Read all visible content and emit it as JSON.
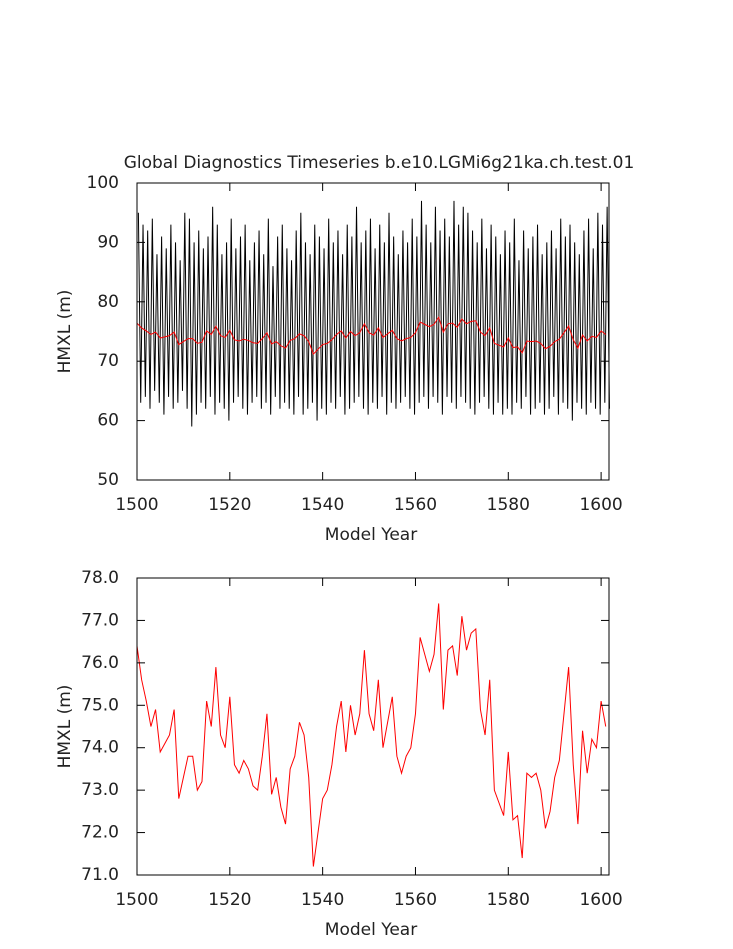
{
  "chart_data": [
    {
      "type": "line",
      "title": "Global Diagnostics Timeseries b.e10.LGMi6g21ka.ch.test.01",
      "x_label": "Model Year",
      "y_label": "HMXL (m)",
      "xlim": [
        1500,
        1601.7
      ],
      "ylim": [
        50,
        100
      ],
      "xticks": [
        1500,
        1520,
        1540,
        1560,
        1580,
        1600
      ],
      "yticks": [
        50,
        60,
        70,
        80,
        90,
        100
      ],
      "series": [
        {
          "color": "#000000",
          "x": [
            1500.3,
            1500.8,
            1501.3,
            1501.8,
            1502.3,
            1502.8,
            1503.3,
            1503.8,
            1504.3,
            1504.8,
            1505.3,
            1505.8,
            1506.3,
            1506.8,
            1507.3,
            1507.8,
            1508.3,
            1508.8,
            1509.3,
            1509.8,
            1510.3,
            1510.8,
            1511.3,
            1511.8,
            1512.3,
            1512.8,
            1513.3,
            1513.8,
            1514.3,
            1514.8,
            1515.3,
            1515.8,
            1516.3,
            1516.8,
            1517.3,
            1517.8,
            1518.3,
            1518.8,
            1519.3,
            1519.8,
            1520.3,
            1520.8,
            1521.3,
            1521.8,
            1522.3,
            1522.8,
            1523.3,
            1523.8,
            1524.3,
            1524.8,
            1525.3,
            1525.8,
            1526.3,
            1526.8,
            1527.3,
            1527.8,
            1528.3,
            1528.8,
            1529.3,
            1529.8,
            1530.3,
            1530.8,
            1531.3,
            1531.8,
            1532.3,
            1532.8,
            1533.3,
            1533.8,
            1534.3,
            1534.8,
            1535.3,
            1535.8,
            1536.3,
            1536.8,
            1537.3,
            1537.8,
            1538.3,
            1538.8,
            1539.3,
            1539.8,
            1540.3,
            1540.8,
            1541.3,
            1541.8,
            1542.3,
            1542.8,
            1543.3,
            1543.8,
            1544.3,
            1544.8,
            1545.3,
            1545.8,
            1546.3,
            1546.8,
            1547.3,
            1547.8,
            1548.3,
            1548.8,
            1549.3,
            1549.8,
            1550.3,
            1550.8,
            1551.3,
            1551.8,
            1552.3,
            1552.8,
            1553.3,
            1553.8,
            1554.3,
            1554.8,
            1555.3,
            1555.8,
            1556.3,
            1556.8,
            1557.3,
            1557.8,
            1558.3,
            1558.8,
            1559.3,
            1559.8,
            1560.3,
            1560.8,
            1561.3,
            1561.8,
            1562.3,
            1562.8,
            1563.3,
            1563.8,
            1564.3,
            1564.8,
            1565.3,
            1565.8,
            1566.3,
            1566.8,
            1567.3,
            1567.8,
            1568.3,
            1568.8,
            1569.3,
            1569.8,
            1570.3,
            1570.8,
            1571.3,
            1571.8,
            1572.3,
            1572.8,
            1573.3,
            1573.8,
            1574.3,
            1574.8,
            1575.3,
            1575.8,
            1576.3,
            1576.8,
            1577.3,
            1577.8,
            1578.3,
            1578.8,
            1579.3,
            1579.8,
            1580.3,
            1580.8,
            1581.3,
            1581.8,
            1582.3,
            1582.8,
            1583.3,
            1583.8,
            1584.3,
            1584.8,
            1585.3,
            1585.8,
            1586.3,
            1586.8,
            1587.3,
            1587.8,
            1588.3,
            1588.8,
            1589.3,
            1589.8,
            1590.3,
            1590.8,
            1591.3,
            1591.8,
            1592.3,
            1592.8,
            1593.3,
            1593.8,
            1594.3,
            1594.8,
            1595.3,
            1595.8,
            1596.3,
            1596.8,
            1597.3,
            1597.8,
            1598.3,
            1598.8,
            1599.3,
            1599.8,
            1600.3,
            1600.8,
            1601.3,
            1601.8
          ],
          "values": [
            95,
            63,
            93,
            64,
            92,
            62,
            94,
            65,
            88,
            63,
            91,
            61,
            89,
            64,
            93,
            62,
            90,
            63,
            87,
            65,
            95,
            62,
            94,
            59,
            90,
            61,
            92,
            63,
            89,
            62,
            91,
            64,
            96,
            61,
            93,
            63,
            88,
            62,
            90,
            60,
            94,
            63,
            89,
            64,
            91,
            62,
            93,
            61,
            87,
            63,
            90,
            64,
            92,
            62,
            88,
            63,
            94,
            61,
            86,
            64,
            91,
            62,
            93,
            63,
            89,
            62,
            87,
            61,
            92,
            64,
            95,
            61,
            90,
            62,
            88,
            63,
            93,
            60,
            91,
            62,
            89,
            61,
            94,
            63,
            90,
            62,
            92,
            64,
            88,
            61,
            93,
            62,
            91,
            63,
            96,
            64,
            90,
            62,
            92,
            61,
            94,
            63,
            89,
            62,
            93,
            64,
            90,
            61,
            95,
            63,
            91,
            62,
            88,
            63,
            92,
            64,
            90,
            62,
            94,
            61,
            91,
            63,
            97,
            64,
            93,
            62,
            90,
            64,
            96,
            63,
            92,
            61,
            94,
            64,
            91,
            63,
            97,
            62,
            93,
            64,
            96,
            63,
            95,
            62,
            92,
            61,
            90,
            63,
            94,
            64,
            89,
            62,
            93,
            61,
            91,
            63,
            88,
            61,
            92,
            62,
            90,
            61,
            94,
            63,
            87,
            62,
            92,
            64,
            89,
            61,
            91,
            62,
            93,
            63,
            88,
            61,
            90,
            62,
            92,
            64,
            89,
            61,
            94,
            63,
            91,
            62,
            93,
            60,
            90,
            63,
            88,
            62,
            92,
            61,
            94,
            63,
            89,
            62,
            95,
            61,
            93,
            63,
            96,
            62
          ]
        },
        {
          "color": "#ff0000",
          "x": [
            1500,
            1501,
            1502,
            1503,
            1504,
            1505,
            1506,
            1507,
            1508,
            1509,
            1510,
            1511,
            1512,
            1513,
            1514,
            1515,
            1516,
            1517,
            1518,
            1519,
            1520,
            1521,
            1522,
            1523,
            1524,
            1525,
            1526,
            1527,
            1528,
            1529,
            1530,
            1531,
            1532,
            1533,
            1534,
            1535,
            1536,
            1537,
            1538,
            1539,
            1540,
            1541,
            1542,
            1543,
            1544,
            1545,
            1546,
            1547,
            1548,
            1549,
            1550,
            1551,
            1552,
            1553,
            1554,
            1555,
            1556,
            1557,
            1558,
            1559,
            1560,
            1561,
            1562,
            1563,
            1564,
            1565,
            1566,
            1567,
            1568,
            1569,
            1570,
            1571,
            1572,
            1573,
            1574,
            1575,
            1576,
            1577,
            1578,
            1579,
            1580,
            1581,
            1582,
            1583,
            1584,
            1585,
            1586,
            1587,
            1588,
            1589,
            1590,
            1591,
            1592,
            1593,
            1594,
            1595,
            1596,
            1597,
            1598,
            1599,
            1600,
            1601
          ],
          "values": [
            76.4,
            75.6,
            75.1,
            74.5,
            74.9,
            73.9,
            74.1,
            74.3,
            74.9,
            72.8,
            73.3,
            73.8,
            73.8,
            73.0,
            73.2,
            75.1,
            74.5,
            75.9,
            74.3,
            74.0,
            75.2,
            73.6,
            73.4,
            73.7,
            73.5,
            73.1,
            73.0,
            73.8,
            74.8,
            72.9,
            73.3,
            72.6,
            72.2,
            73.5,
            73.8,
            74.6,
            74.3,
            73.3,
            71.2,
            72.0,
            72.8,
            73.0,
            73.6,
            74.5,
            75.1,
            73.9,
            75.0,
            74.3,
            74.8,
            76.3,
            74.8,
            74.4,
            75.6,
            74.0,
            74.6,
            75.2,
            73.8,
            73.4,
            73.8,
            74.0,
            74.8,
            76.6,
            76.2,
            75.8,
            76.2,
            77.4,
            74.9,
            76.3,
            76.4,
            75.7,
            77.1,
            76.3,
            76.7,
            76.8,
            74.9,
            74.3,
            75.6,
            73.0,
            72.7,
            72.4,
            73.9,
            72.3,
            72.4,
            71.4,
            73.4,
            73.3,
            73.4,
            73.0,
            72.1,
            72.5,
            73.3,
            73.7,
            74.8,
            75.9,
            73.6,
            72.2,
            74.4,
            73.4,
            74.2,
            74.0,
            75.1,
            74.5
          ]
        }
      ]
    },
    {
      "type": "line",
      "x_label": "Model Year",
      "y_label": "HMXL (m)",
      "xlim": [
        1500,
        1601.7
      ],
      "ylim": [
        71,
        78
      ],
      "xticks": [
        1500,
        1520,
        1540,
        1560,
        1580,
        1600
      ],
      "yticks": [
        {
          "value": 71,
          "label": "71.0"
        },
        {
          "value": 72,
          "label": "72.0"
        },
        {
          "value": 73,
          "label": "73.0"
        },
        {
          "value": 74,
          "label": "74.0"
        },
        {
          "value": 75,
          "label": "75.0"
        },
        {
          "value": 76,
          "label": "76.0"
        },
        {
          "value": 77,
          "label": "77.0"
        },
        {
          "value": 78,
          "label": "78.0"
        }
      ],
      "series": [
        {
          "color": "#ff0000",
          "x": [
            1500,
            1501,
            1502,
            1503,
            1504,
            1505,
            1506,
            1507,
            1508,
            1509,
            1510,
            1511,
            1512,
            1513,
            1514,
            1515,
            1516,
            1517,
            1518,
            1519,
            1520,
            1521,
            1522,
            1523,
            1524,
            1525,
            1526,
            1527,
            1528,
            1529,
            1530,
            1531,
            1532,
            1533,
            1534,
            1535,
            1536,
            1537,
            1538,
            1539,
            1540,
            1541,
            1542,
            1543,
            1544,
            1545,
            1546,
            1547,
            1548,
            1549,
            1550,
            1551,
            1552,
            1553,
            1554,
            1555,
            1556,
            1557,
            1558,
            1559,
            1560,
            1561,
            1562,
            1563,
            1564,
            1565,
            1566,
            1567,
            1568,
            1569,
            1570,
            1571,
            1572,
            1573,
            1574,
            1575,
            1576,
            1577,
            1578,
            1579,
            1580,
            1581,
            1582,
            1583,
            1584,
            1585,
            1586,
            1587,
            1588,
            1589,
            1590,
            1591,
            1592,
            1593,
            1594,
            1595,
            1596,
            1597,
            1598,
            1599,
            1600,
            1601
          ],
          "values": [
            76.4,
            75.6,
            75.1,
            74.5,
            74.9,
            73.9,
            74.1,
            74.3,
            74.9,
            72.8,
            73.3,
            73.8,
            73.8,
            73.0,
            73.2,
            75.1,
            74.5,
            75.9,
            74.3,
            74.0,
            75.2,
            73.6,
            73.4,
            73.7,
            73.5,
            73.1,
            73.0,
            73.8,
            74.8,
            72.9,
            73.3,
            72.6,
            72.2,
            73.5,
            73.8,
            74.6,
            74.3,
            73.3,
            71.2,
            72.0,
            72.8,
            73.0,
            73.6,
            74.5,
            75.1,
            73.9,
            75.0,
            74.3,
            74.8,
            76.3,
            74.8,
            74.4,
            75.6,
            74.0,
            74.6,
            75.2,
            73.8,
            73.4,
            73.8,
            74.0,
            74.8,
            76.6,
            76.2,
            75.8,
            76.2,
            77.4,
            74.9,
            76.3,
            76.4,
            75.7,
            77.1,
            76.3,
            76.7,
            76.8,
            74.9,
            74.3,
            75.6,
            73.0,
            72.7,
            72.4,
            73.9,
            72.3,
            72.4,
            71.4,
            73.4,
            73.3,
            73.4,
            73.0,
            72.1,
            72.5,
            73.3,
            73.7,
            74.8,
            75.9,
            73.6,
            72.2,
            74.4,
            73.4,
            74.2,
            74.0,
            75.1,
            74.5
          ]
        }
      ]
    }
  ]
}
